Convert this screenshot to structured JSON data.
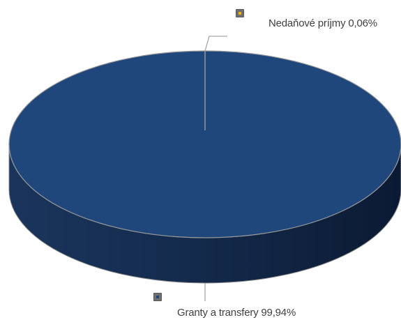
{
  "chart_data": {
    "type": "pie",
    "style": "3d",
    "legend": "data-labels",
    "slices": [
      {
        "label": "Granty a transfery",
        "value": 99.94,
        "display": "Granty a transfery 99,94%",
        "color": "#1f477c"
      },
      {
        "label": "Nedaňové príjmy",
        "value": 0.06,
        "display": "Nedaňové príjmy 0,06%",
        "color": "#f2b200"
      }
    ]
  }
}
